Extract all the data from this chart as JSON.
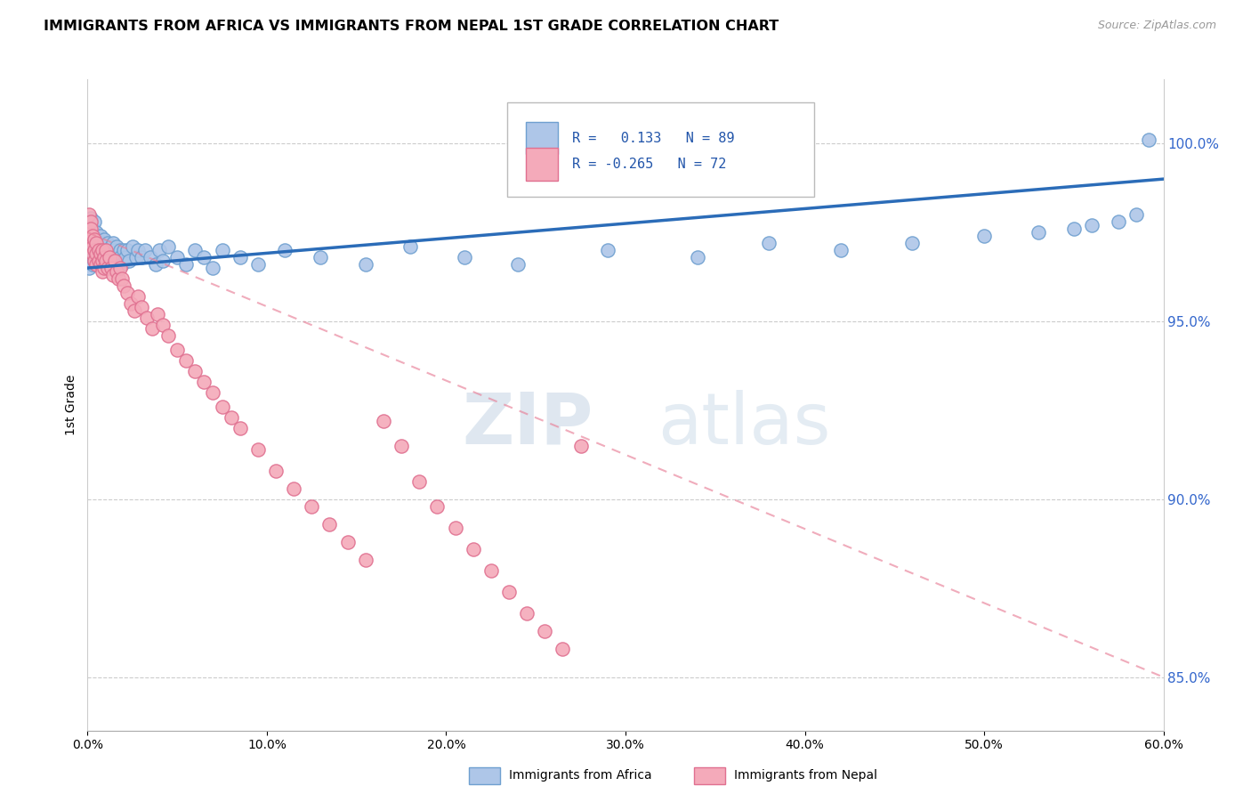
{
  "title": "IMMIGRANTS FROM AFRICA VS IMMIGRANTS FROM NEPAL 1ST GRADE CORRELATION CHART",
  "source": "Source: ZipAtlas.com",
  "ylabel": "1st Grade",
  "y_ticks": [
    85.0,
    90.0,
    95.0,
    100.0
  ],
  "x_range": [
    0.0,
    0.6
  ],
  "y_range": [
    83.5,
    101.8
  ],
  "africa_R": 0.133,
  "africa_N": 89,
  "nepal_R": -0.265,
  "nepal_N": 72,
  "africa_color": "#AEC6E8",
  "africa_edge_color": "#6FA0D0",
  "nepal_color": "#F4AABA",
  "nepal_edge_color": "#E07090",
  "africa_line_color": "#2B6CB8",
  "nepal_line_color": "#E88098",
  "watermark_zip": "ZIP",
  "watermark_atlas": "atlas",
  "legend_africa": "Immigrants from Africa",
  "legend_nepal": "Immigrants from Nepal",
  "africa_x": [
    0.001,
    0.001,
    0.001,
    0.002,
    0.002,
    0.002,
    0.002,
    0.003,
    0.003,
    0.003,
    0.003,
    0.003,
    0.004,
    0.004,
    0.004,
    0.004,
    0.005,
    0.005,
    0.005,
    0.005,
    0.005,
    0.006,
    0.006,
    0.006,
    0.007,
    0.007,
    0.007,
    0.008,
    0.008,
    0.008,
    0.009,
    0.009,
    0.01,
    0.01,
    0.011,
    0.011,
    0.012,
    0.012,
    0.013,
    0.013,
    0.014,
    0.014,
    0.015,
    0.015,
    0.016,
    0.017,
    0.018,
    0.018,
    0.019,
    0.02,
    0.021,
    0.022,
    0.023,
    0.025,
    0.027,
    0.028,
    0.03,
    0.032,
    0.035,
    0.038,
    0.04,
    0.042,
    0.045,
    0.05,
    0.055,
    0.06,
    0.065,
    0.07,
    0.075,
    0.085,
    0.095,
    0.11,
    0.13,
    0.155,
    0.18,
    0.21,
    0.24,
    0.29,
    0.34,
    0.38,
    0.42,
    0.46,
    0.5,
    0.53,
    0.55,
    0.56,
    0.575,
    0.585,
    0.592
  ],
  "africa_y": [
    97.8,
    97.2,
    96.5,
    97.5,
    97.1,
    96.8,
    97.9,
    97.3,
    96.9,
    97.6,
    97.0,
    96.6,
    97.4,
    97.1,
    96.7,
    97.8,
    97.2,
    96.9,
    97.5,
    97.0,
    96.6,
    97.3,
    97.0,
    96.7,
    97.4,
    97.0,
    96.7,
    97.2,
    96.9,
    96.6,
    97.3,
    97.0,
    97.1,
    96.8,
    97.2,
    96.9,
    97.0,
    96.7,
    97.1,
    96.8,
    97.2,
    96.9,
    97.0,
    96.7,
    97.1,
    96.8,
    97.0,
    96.8,
    96.6,
    97.0,
    96.8,
    97.0,
    96.7,
    97.1,
    96.8,
    97.0,
    96.8,
    97.0,
    96.8,
    96.6,
    97.0,
    96.7,
    97.1,
    96.8,
    96.6,
    97.0,
    96.8,
    96.5,
    97.0,
    96.8,
    96.6,
    97.0,
    96.8,
    96.6,
    97.1,
    96.8,
    96.6,
    97.0,
    96.8,
    97.2,
    97.0,
    97.2,
    97.4,
    97.5,
    97.6,
    97.7,
    97.8,
    98.0,
    100.1
  ],
  "nepal_x": [
    0.001,
    0.001,
    0.002,
    0.002,
    0.002,
    0.003,
    0.003,
    0.003,
    0.004,
    0.004,
    0.004,
    0.005,
    0.005,
    0.005,
    0.006,
    0.006,
    0.007,
    0.007,
    0.008,
    0.008,
    0.008,
    0.009,
    0.009,
    0.01,
    0.01,
    0.011,
    0.012,
    0.013,
    0.014,
    0.015,
    0.016,
    0.017,
    0.018,
    0.019,
    0.02,
    0.022,
    0.024,
    0.026,
    0.028,
    0.03,
    0.033,
    0.036,
    0.039,
    0.042,
    0.045,
    0.05,
    0.055,
    0.06,
    0.065,
    0.07,
    0.075,
    0.08,
    0.085,
    0.095,
    0.105,
    0.115,
    0.125,
    0.135,
    0.145,
    0.155,
    0.165,
    0.175,
    0.185,
    0.195,
    0.205,
    0.215,
    0.225,
    0.235,
    0.245,
    0.255,
    0.265,
    0.275
  ],
  "nepal_y": [
    98.0,
    97.5,
    97.8,
    97.3,
    97.6,
    97.4,
    97.1,
    96.9,
    97.3,
    97.0,
    96.7,
    97.2,
    96.9,
    96.6,
    97.0,
    96.7,
    96.9,
    96.6,
    97.0,
    96.7,
    96.4,
    96.8,
    96.5,
    97.0,
    96.7,
    96.5,
    96.8,
    96.5,
    96.3,
    96.7,
    96.4,
    96.2,
    96.5,
    96.2,
    96.0,
    95.8,
    95.5,
    95.3,
    95.7,
    95.4,
    95.1,
    94.8,
    95.2,
    94.9,
    94.6,
    94.2,
    93.9,
    93.6,
    93.3,
    93.0,
    92.6,
    92.3,
    92.0,
    91.4,
    90.8,
    90.3,
    89.8,
    89.3,
    88.8,
    88.3,
    92.2,
    91.5,
    90.5,
    89.8,
    89.2,
    88.6,
    88.0,
    87.4,
    86.8,
    86.3,
    85.8,
    91.5
  ]
}
